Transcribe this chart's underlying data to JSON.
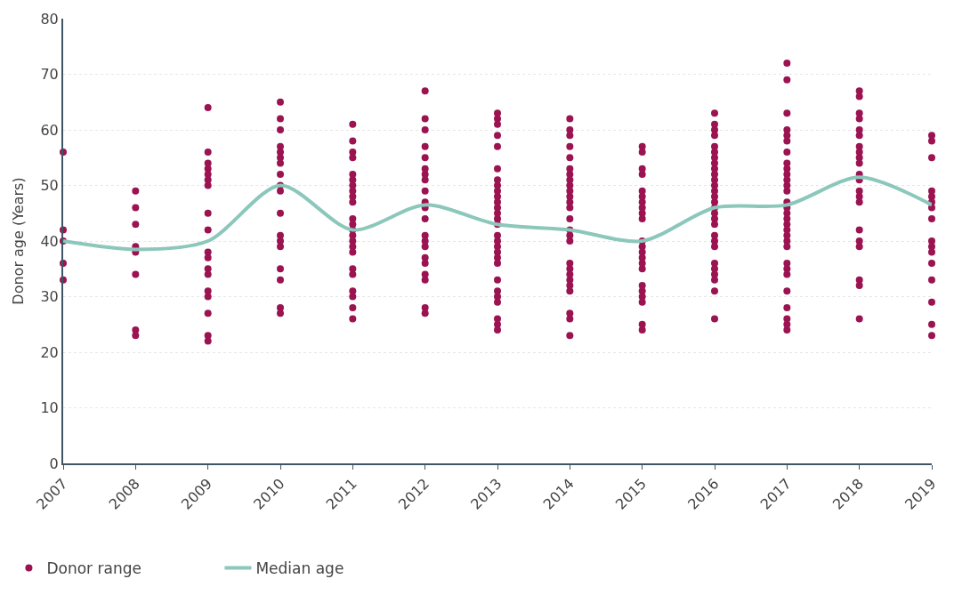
{
  "chart_data": {
    "type": "scatter",
    "ylabel": "Donor age (Years)",
    "xlim": [
      2007,
      2019
    ],
    "xticks": [
      2007,
      2008,
      2009,
      2010,
      2011,
      2012,
      2013,
      2014,
      2015,
      2016,
      2017,
      2018,
      2019
    ],
    "ylim": [
      0,
      80
    ],
    "yticks": [
      0,
      10,
      20,
      30,
      40,
      50,
      60,
      70,
      80
    ],
    "grid": "y",
    "legend": "bottom left",
    "series": [
      {
        "name": "Donor range",
        "color": "#9b1451",
        "marker": "circle",
        "x": [
          2007,
          2007,
          2007,
          2007,
          2007,
          2008,
          2008,
          2008,
          2008,
          2008,
          2008,
          2008,
          2008,
          2009,
          2009,
          2009,
          2009,
          2009,
          2009,
          2009,
          2009,
          2009,
          2009,
          2009,
          2009,
          2009,
          2009,
          2009,
          2009,
          2009,
          2009,
          2010,
          2010,
          2010,
          2010,
          2010,
          2010,
          2010,
          2010,
          2010,
          2010,
          2010,
          2010,
          2010,
          2010,
          2010,
          2010,
          2010,
          2010,
          2011,
          2011,
          2011,
          2011,
          2011,
          2011,
          2011,
          2011,
          2011,
          2011,
          2011,
          2011,
          2011,
          2011,
          2011,
          2011,
          2011,
          2011,
          2011,
          2011,
          2011,
          2011,
          2011,
          2012,
          2012,
          2012,
          2012,
          2012,
          2012,
          2012,
          2012,
          2012,
          2012,
          2012,
          2012,
          2012,
          2012,
          2012,
          2012,
          2012,
          2012,
          2012,
          2012,
          2012,
          2013,
          2013,
          2013,
          2013,
          2013,
          2013,
          2013,
          2013,
          2013,
          2013,
          2013,
          2013,
          2013,
          2013,
          2013,
          2013,
          2013,
          2013,
          2013,
          2013,
          2013,
          2013,
          2013,
          2013,
          2013,
          2013,
          2013,
          2013,
          2014,
          2014,
          2014,
          2014,
          2014,
          2014,
          2014,
          2014,
          2014,
          2014,
          2014,
          2014,
          2014,
          2014,
          2014,
          2014,
          2014,
          2014,
          2014,
          2014,
          2014,
          2014,
          2014,
          2014,
          2014,
          2014,
          2015,
          2015,
          2015,
          2015,
          2015,
          2015,
          2015,
          2015,
          2015,
          2015,
          2015,
          2015,
          2015,
          2015,
          2015,
          2015,
          2015,
          2015,
          2015,
          2015,
          2015,
          2015,
          2016,
          2016,
          2016,
          2016,
          2016,
          2016,
          2016,
          2016,
          2016,
          2016,
          2016,
          2016,
          2016,
          2016,
          2016,
          2016,
          2016,
          2016,
          2016,
          2016,
          2016,
          2016,
          2016,
          2016,
          2016,
          2016,
          2016,
          2016,
          2017,
          2017,
          2017,
          2017,
          2017,
          2017,
          2017,
          2017,
          2017,
          2017,
          2017,
          2017,
          2017,
          2017,
          2017,
          2017,
          2017,
          2017,
          2017,
          2017,
          2017,
          2017,
          2017,
          2017,
          2017,
          2017,
          2017,
          2017,
          2017,
          2017,
          2018,
          2018,
          2018,
          2018,
          2018,
          2018,
          2018,
          2018,
          2018,
          2018,
          2018,
          2018,
          2018,
          2018,
          2018,
          2018,
          2018,
          2018,
          2018,
          2018,
          2018,
          2019,
          2019,
          2019,
          2019,
          2019,
          2019,
          2019,
          2019,
          2019,
          2019,
          2019,
          2019,
          2019,
          2019,
          2019,
          2019
        ],
        "values": [
          56,
          42,
          40,
          36,
          33,
          49,
          46,
          43,
          39,
          38,
          34,
          24,
          23,
          64,
          56,
          54,
          53,
          52,
          51,
          50,
          45,
          42,
          38,
          37,
          35,
          34,
          31,
          30,
          27,
          23,
          22,
          65,
          62,
          60,
          57,
          56,
          55,
          54,
          52,
          50,
          49,
          45,
          41,
          40,
          39,
          35,
          33,
          28,
          27,
          61,
          58,
          56,
          55,
          52,
          51,
          50,
          49,
          48,
          47,
          44,
          43,
          42,
          41,
          40,
          39,
          38,
          35,
          34,
          31,
          30,
          28,
          26,
          67,
          62,
          60,
          57,
          55,
          53,
          52,
          51,
          49,
          47,
          46,
          44,
          41,
          40,
          39,
          37,
          36,
          34,
          33,
          28,
          27,
          63,
          62,
          61,
          59,
          57,
          53,
          51,
          50,
          49,
          48,
          47,
          46,
          45,
          44,
          43,
          41,
          40,
          39,
          38,
          37,
          36,
          33,
          31,
          30,
          29,
          26,
          25,
          24,
          62,
          60,
          59,
          57,
          55,
          53,
          52,
          51,
          50,
          49,
          48,
          47,
          46,
          44,
          42,
          41,
          40,
          36,
          35,
          34,
          33,
          32,
          31,
          27,
          26,
          23,
          57,
          56,
          53,
          52,
          49,
          48,
          47,
          46,
          45,
          44,
          40,
          39,
          38,
          37,
          36,
          35,
          32,
          31,
          30,
          29,
          25,
          24,
          63,
          61,
          60,
          59,
          57,
          56,
          55,
          54,
          53,
          52,
          51,
          50,
          49,
          48,
          47,
          46,
          45,
          44,
          43,
          41,
          40,
          39,
          36,
          35,
          34,
          33,
          31,
          26,
          72,
          69,
          63,
          60,
          59,
          58,
          56,
          54,
          53,
          52,
          51,
          50,
          49,
          47,
          46,
          45,
          44,
          43,
          42,
          41,
          40,
          39,
          36,
          35,
          34,
          31,
          28,
          26,
          25,
          24,
          67,
          66,
          63,
          62,
          60,
          59,
          57,
          56,
          55,
          54,
          52,
          51,
          49,
          48,
          47,
          42,
          40,
          39,
          33,
          32,
          26,
          59,
          58,
          55,
          49,
          48,
          47,
          46,
          44,
          40,
          39,
          38,
          36,
          33,
          29,
          25,
          23
        ]
      },
      {
        "name": "Median age",
        "type": "line",
        "color": "#8cc7bb",
        "marker": "none",
        "line_style": "solid",
        "x": [
          2007,
          2008,
          2009,
          2010,
          2011,
          2012,
          2013,
          2014,
          2015,
          2016,
          2017,
          2018,
          2019
        ],
        "values": [
          40,
          38.5,
          40,
          50,
          42,
          46.5,
          43,
          42,
          40,
          46,
          46.5,
          51.5,
          46.5
        ]
      }
    ]
  }
}
